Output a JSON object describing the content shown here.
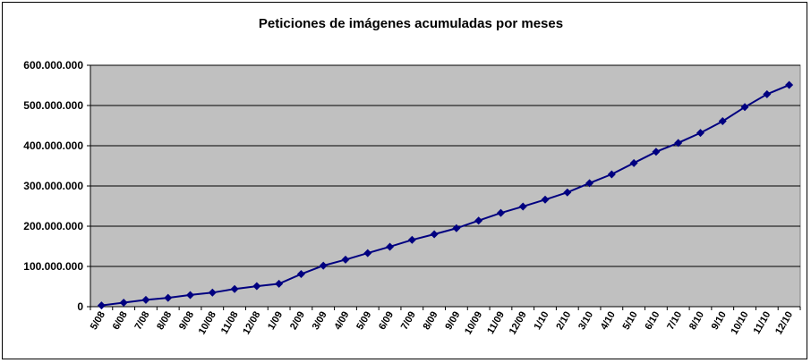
{
  "chart_data": {
    "type": "line",
    "title": "Peticiones de imágenes acumuladas por meses",
    "xlabel": "",
    "ylabel": "",
    "categories": [
      "5/08",
      "6/08",
      "7/08",
      "8/08",
      "9/08",
      "10/08",
      "11/08",
      "12/08",
      "1/09",
      "2/09",
      "3/09",
      "4/09",
      "5/09",
      "6/09",
      "7/09",
      "8/09",
      "9/09",
      "10/09",
      "11/09",
      "12/09",
      "1/10",
      "2/10",
      "3/10",
      "4/10",
      "5/10",
      "6/10",
      "7/10",
      "8/10",
      "9/10",
      "10/10",
      "11/10",
      "12/10"
    ],
    "series": [
      {
        "values": [
          3000000,
          10000000,
          17000000,
          22000000,
          29000000,
          35000000,
          44000000,
          51000000,
          57000000,
          81000000,
          102000000,
          117000000,
          133000000,
          149000000,
          166000000,
          180000000,
          195000000,
          214000000,
          233000000,
          249000000,
          266000000,
          284000000,
          307000000,
          329000000,
          357000000,
          385000000,
          407000000,
          432000000,
          461000000,
          496000000,
          528000000,
          551000000
        ]
      }
    ],
    "ylim": [
      0,
      600000000
    ],
    "yticks": [
      "0",
      "100.000.000",
      "200.000.000",
      "300.000.000",
      "400.000.000",
      "500.000.000",
      "600.000.000"
    ],
    "grid": true,
    "legend": "none",
    "colors": {
      "line": "#000080",
      "marker": "#000080",
      "plot_background": "#c0c0c0",
      "gridline": "#000000"
    }
  }
}
